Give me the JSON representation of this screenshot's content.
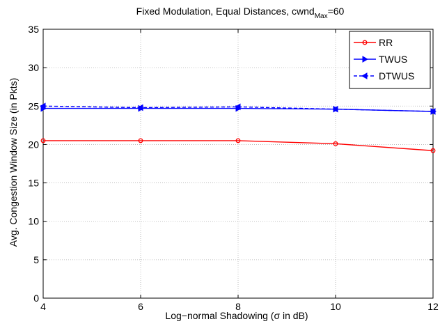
{
  "chart_data": {
    "type": "line",
    "title_main": "Fixed Modulation, Equal Distances, cwnd",
    "title_sub": "Max",
    "title_tail": "=60",
    "xlabel": "Log−normal Shadowing (σ in dB)",
    "ylabel": "Avg. Congestion Window Size (in Pkts)",
    "x": [
      4,
      6,
      8,
      10,
      12
    ],
    "xlim": [
      4,
      12
    ],
    "ylim": [
      0,
      35
    ],
    "xticks": [
      "4",
      "6",
      "8",
      "10",
      "12"
    ],
    "yticks": [
      "0",
      "5",
      "10",
      "15",
      "20",
      "25",
      "30",
      "35"
    ],
    "grid": true,
    "legend_position": "top-right",
    "series": [
      {
        "name": "RR",
        "values": [
          20.5,
          20.5,
          20.5,
          20.1,
          19.2
        ],
        "color": "#ff0000",
        "dash": "solid",
        "marker": "circle"
      },
      {
        "name": "TWUS",
        "values": [
          24.7,
          24.7,
          24.7,
          24.6,
          24.3
        ],
        "color": "#0000ff",
        "dash": "solid",
        "marker": "triangle-right"
      },
      {
        "name": "DTWUS",
        "values": [
          25.0,
          24.8,
          24.9,
          24.6,
          24.3
        ],
        "color": "#0000ff",
        "dash": "dashed",
        "marker": "triangle-left"
      }
    ]
  }
}
